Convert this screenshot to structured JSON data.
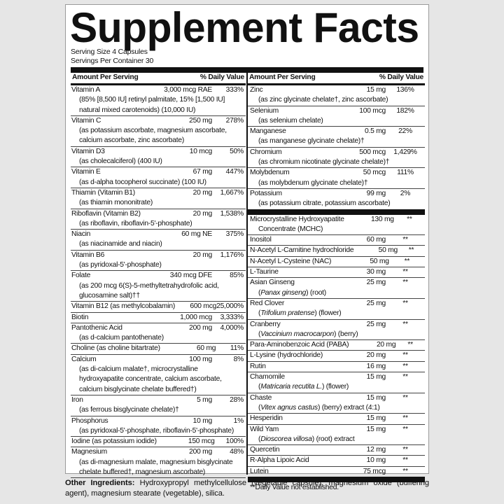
{
  "title": "Supplement Facts",
  "serving_size": "Serving Size 4 Capsules",
  "servings_per_container": "Servings Per Container 30",
  "header": {
    "amount": "Amount Per Serving",
    "dv": "% Daily Value"
  },
  "left_rows": [
    {
      "name": "Vitamin A",
      "amount": "3,000 mcg RAE",
      "dv": "333%",
      "sub": [
        [
          {
            "t": "(85% [8,500 IU] retinyl palmitate, 15% [1,500 IU]"
          }
        ],
        [
          {
            "t": "natural mixed carotenoids) (10,000 IU)"
          }
        ]
      ]
    },
    {
      "name": "Vitamin C",
      "amount": "250 mg",
      "dv": "278%",
      "sub": [
        [
          {
            "t": "(as potassium ascorbate, magnesium ascorbate,"
          }
        ],
        [
          {
            "t": "calcium ascorbate, zinc ascorbate)"
          }
        ]
      ]
    },
    {
      "name": "Vitamin D3",
      "amount": "10 mcg",
      "dv": "50%",
      "sub": [
        [
          {
            "t": "(as cholecalciferol) (400 IU)"
          }
        ]
      ]
    },
    {
      "name": "Vitamin E",
      "amount": "67 mg",
      "dv": "447%",
      "sub": [
        [
          {
            "t": "(as d-alpha tocopherol succinate) (100 IU)"
          }
        ]
      ]
    },
    {
      "name": "Thiamin (Vitamin B1)",
      "amount": "20 mg",
      "dv": "1,667%",
      "sub": [
        [
          {
            "t": "(as thiamin mononitrate)"
          }
        ]
      ]
    },
    {
      "name": "Riboflavin (Vitamin B2)",
      "amount": "20 mg",
      "dv": "1,538%",
      "sub": [
        [
          {
            "t": "(as riboflavin, riboflavin-5'-phosphate)"
          }
        ]
      ]
    },
    {
      "name": "Niacin",
      "amount": "60 mg NE",
      "dv": "375%",
      "sub": [
        [
          {
            "t": "(as niacinamide and niacin)"
          }
        ]
      ]
    },
    {
      "name": "Vitamin B6",
      "amount": "20 mg",
      "dv": "1,176%",
      "sub": [
        [
          {
            "t": "(as pyridoxal-5'-phosphate)"
          }
        ]
      ]
    },
    {
      "name": "Folate",
      "amount": "340 mcg DFE",
      "dv": "85%",
      "sub": [
        [
          {
            "t": "(as 200 mcg 6(S)-5-methyltetrahydrofolic acid,"
          }
        ],
        [
          {
            "t": "glucosamine salt)††"
          }
        ]
      ]
    },
    {
      "name": "Vitamin B12 (as methylcobalamin)",
      "amount": "600 mcg",
      "dv": "25,000%",
      "sub": []
    },
    {
      "name": "Biotin",
      "amount": "1,000 mcg",
      "dv": "3,333%",
      "sub": []
    },
    {
      "name": "Pantothenic Acid",
      "amount": "200 mg",
      "dv": "4,000%",
      "sub": [
        [
          {
            "t": "(as d-calcium pantothenate)"
          }
        ]
      ]
    },
    {
      "name": "Choline (as choline bitartrate)",
      "amount": "60 mg",
      "dv": "11%",
      "sub": []
    },
    {
      "name": "Calcium",
      "amount": "100 mg",
      "dv": "8%",
      "sub": [
        [
          {
            "t": "(as di-calcium malate†, microcrystalline"
          }
        ],
        [
          {
            "t": "hydroxyapatite concentrate, calcium ascorbate,"
          }
        ],
        [
          {
            "t": "calcium bisglycinate chelate buffered†)"
          }
        ]
      ]
    },
    {
      "name": "Iron",
      "amount": "5 mg",
      "dv": "28%",
      "sub": [
        [
          {
            "t": "(as ferrous bisglycinate chelate)†"
          }
        ]
      ]
    },
    {
      "name": "Phosphorus",
      "amount": "10 mg",
      "dv": "1%",
      "sub": [
        [
          {
            "t": "(as pyridoxal-5'-phosphate, riboflavin-5'-phosphate)"
          }
        ]
      ]
    },
    {
      "name": "Iodine (as potassium iodide)",
      "amount": "150 mcg",
      "dv": "100%",
      "sub": []
    },
    {
      "name": "Magnesium",
      "amount": "200 mg",
      "dv": "48%",
      "sub": [
        [
          {
            "t": "(as di-magnesium malate, magnesium bisglycinate"
          }
        ],
        [
          {
            "t": "chelate buffered†, magnesium ascorbate)"
          }
        ]
      ]
    }
  ],
  "right_rows": [
    {
      "name": "Zinc",
      "amount": "15 mg",
      "dv": "136%",
      "sub": [
        [
          {
            "t": "(as zinc glycinate chelate†, zinc ascorbate)"
          }
        ]
      ]
    },
    {
      "name": "Selenium",
      "amount": "100 mcg",
      "dv": "182%",
      "sub": [
        [
          {
            "t": "(as selenium chelate)"
          }
        ]
      ]
    },
    {
      "name": "Manganese",
      "amount": "0.5 mg",
      "dv": "22%",
      "sub": [
        [
          {
            "t": "(as manganese glycinate chelate)†"
          }
        ]
      ]
    },
    {
      "name": "Chromium",
      "amount": "500 mcg",
      "dv": "1,429%",
      "sub": [
        [
          {
            "t": "(as chromium nicotinate glycinate chelate)†"
          }
        ]
      ]
    },
    {
      "name": "Molybdenum",
      "amount": "50 mcg",
      "dv": "111%",
      "sub": [
        [
          {
            "t": "(as molybdenum glycinate chelate)†"
          }
        ]
      ]
    },
    {
      "name": "Potassium",
      "amount": "99 mg",
      "dv": "2%",
      "sub": [
        [
          {
            "t": "(as potassium citrate, potassium ascorbate)"
          }
        ]
      ]
    }
  ],
  "right_rows_2": [
    {
      "name": "Microcrystalline Hydroxyapatite",
      "amount": "130 mg",
      "dv": "**",
      "sub": [
        [
          {
            "t": "Concentrate (MCHC)"
          }
        ]
      ]
    },
    {
      "name": "Inositol",
      "amount": "60 mg",
      "dv": "**",
      "sub": []
    },
    {
      "name": "N-Acetyl L-Carnitine hydrochloride",
      "amount": "50 mg",
      "dv": "**",
      "sub": []
    },
    {
      "name": "N-Acetyl L-Cysteine (NAC)",
      "amount": "50 mg",
      "dv": "**",
      "sub": []
    },
    {
      "name": "L-Taurine",
      "amount": "30 mg",
      "dv": "**",
      "sub": []
    },
    {
      "name": "Asian Ginseng",
      "amount": "25 mg",
      "dv": "**",
      "sub": [
        [
          {
            "t": "("
          },
          {
            "t": "Panax ginseng",
            "i": true
          },
          {
            "t": ") (root)"
          }
        ]
      ]
    },
    {
      "name": "Red Clover",
      "amount": "25 mg",
      "dv": "**",
      "sub": [
        [
          {
            "t": "("
          },
          {
            "t": "Trifolium pratense",
            "i": true
          },
          {
            "t": ") (flower)"
          }
        ]
      ]
    },
    {
      "name": "Cranberry",
      "amount": "25 mg",
      "dv": "**",
      "sub": [
        [
          {
            "t": "("
          },
          {
            "t": "Vaccinium macrocarpon",
            "i": true
          },
          {
            "t": ") (berry)"
          }
        ]
      ]
    },
    {
      "name": "Para-Aminobenzoic Acid (PABA)",
      "amount": "20 mg",
      "dv": "**",
      "sub": []
    },
    {
      "name": "L-Lysine (hydrochloride)",
      "amount": "20 mg",
      "dv": "**",
      "sub": []
    },
    {
      "name": "Rutin",
      "amount": "16 mg",
      "dv": "**",
      "sub": []
    },
    {
      "name": "Chamomile",
      "amount": "15 mg",
      "dv": "**",
      "sub": [
        [
          {
            "t": "("
          },
          {
            "t": "Matricaria recutita L.",
            "i": true
          },
          {
            "t": ") (flower)"
          }
        ]
      ]
    },
    {
      "name": "Chaste",
      "amount": "15 mg",
      "dv": "**",
      "sub": [
        [
          {
            "t": "("
          },
          {
            "t": "Vitex agnus castus",
            "i": true
          },
          {
            "t": ") (berry) extract  (4:1)"
          }
        ]
      ]
    },
    {
      "name": "Hesperidin",
      "amount": "15 mg",
      "dv": "**",
      "sub": []
    },
    {
      "name": "Wild Yam",
      "amount": "15 mg",
      "dv": "**",
      "sub": [
        [
          {
            "t": "("
          },
          {
            "t": "Dioscorea villosa",
            "i": true
          },
          {
            "t": ") (root) extract"
          }
        ]
      ]
    },
    {
      "name": "Quercetin",
      "amount": "12 mg",
      "dv": "**",
      "sub": []
    },
    {
      "name": "R-Alpha Lipoic Acid",
      "amount": "10 mg",
      "dv": "**",
      "sub": []
    },
    {
      "name": "Lutein",
      "amount": "75 mcg",
      "dv": "**",
      "sub": []
    }
  ],
  "footnote": "**Daily Value not established.",
  "other_ingredients": {
    "label": "Other Ingredients:",
    "text": " Hydroxypropyl methylcellulose (vegetable capsule), magnesium oxide (buffering agent), magnesium stearate (vegetable), silica."
  }
}
